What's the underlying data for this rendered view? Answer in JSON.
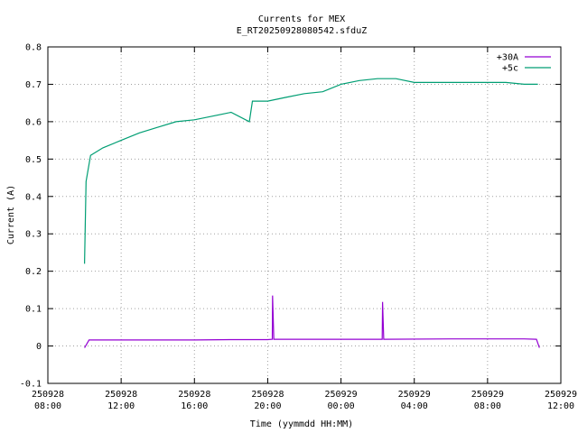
{
  "chart_data": {
    "type": "line",
    "title": "Currents for MEX",
    "subtitle": "E_RT20250928080542.sfduZ",
    "xlabel": "Time (yymmdd HH:MM)",
    "ylabel": "Current (A)",
    "xlim": [
      "250928 08:00",
      "250929 12:00"
    ],
    "ylim": [
      -0.1,
      0.8
    ],
    "grid": true,
    "legend_position": "top-right",
    "x_ticks": [
      "250928\n08:00",
      "250928\n12:00",
      "250928\n16:00",
      "250928\n20:00",
      "250929\n00:00",
      "250929\n04:00",
      "250929\n08:00",
      "250929\n12:00"
    ],
    "y_ticks": [
      "-0.1",
      "0",
      "0.1",
      "0.2",
      "0.3",
      "0.4",
      "0.5",
      "0.6",
      "0.7",
      "0.8"
    ],
    "series": [
      {
        "name": "+30A",
        "color": "#9400d3",
        "x": [
          "250928 10:00",
          "250928 10:15",
          "250928 12:00",
          "250928 16:00",
          "250928 18:00",
          "250928 19:00",
          "250928 20:00",
          "250928 20:15",
          "250928 20:16",
          "250928 20:20",
          "250929 00:00",
          "250929 02:15",
          "250929 02:16",
          "250929 02:20",
          "250929 06:00",
          "250929 10:00",
          "250929 10:40",
          "250929 10:50"
        ],
        "y": [
          -0.005,
          0.016,
          0.016,
          0.016,
          0.017,
          0.017,
          0.017,
          0.018,
          0.135,
          0.018,
          0.018,
          0.018,
          0.118,
          0.018,
          0.019,
          0.019,
          0.018,
          -0.005
        ]
      },
      {
        "name": "+5c",
        "color": "#009e73",
        "x": [
          "250928 10:00",
          "250928 10:05",
          "250928 10:20",
          "250928 11:00",
          "250928 12:00",
          "250928 13:00",
          "250928 14:00",
          "250928 15:00",
          "250928 16:00",
          "250928 17:00",
          "250928 18:00",
          "250928 19:00",
          "250928 19:10",
          "250928 20:00",
          "250928 21:00",
          "250928 22:00",
          "250928 23:00",
          "250929 00:00",
          "250929 01:00",
          "250929 02:00",
          "250929 03:00",
          "250929 04:00",
          "250929 05:00",
          "250929 06:00",
          "250929 07:00",
          "250929 08:00",
          "250929 09:00",
          "250929 10:00",
          "250929 10:45"
        ],
        "y": [
          0.22,
          0.44,
          0.51,
          0.53,
          0.55,
          0.57,
          0.585,
          0.6,
          0.605,
          0.615,
          0.625,
          0.6,
          0.655,
          0.655,
          0.665,
          0.675,
          0.68,
          0.7,
          0.71,
          0.715,
          0.715,
          0.705,
          0.705,
          0.705,
          0.705,
          0.705,
          0.705,
          0.7,
          0.7
        ]
      }
    ]
  }
}
